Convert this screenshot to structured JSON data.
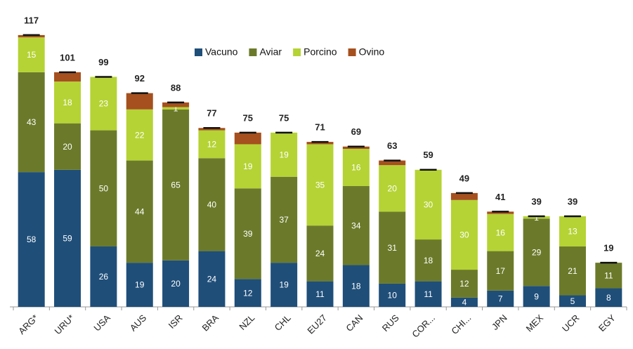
{
  "chart_data": {
    "type": "stacked_bar",
    "categories": [
      "ARG*",
      "URU*",
      "USA",
      "AUS",
      "ISR",
      "BRA",
      "NZL",
      "CHL",
      "EU27",
      "CAN",
      "RUS",
      "COR...",
      "CHI...",
      "JPN",
      "MEX",
      "UCR",
      "EGY"
    ],
    "series": [
      {
        "name": "Vacuno",
        "color": "#1f4e79",
        "values": [
          58,
          59,
          26,
          19,
          20,
          24,
          12,
          19,
          11,
          18,
          10,
          11,
          4,
          7,
          9,
          5,
          8
        ]
      },
      {
        "name": "Aviar",
        "color": "#6b7a2a",
        "values": [
          43,
          20,
          50,
          44,
          65,
          40,
          39,
          37,
          24,
          34,
          31,
          18,
          12,
          17,
          29,
          21,
          11
        ]
      },
      {
        "name": "Porcino",
        "color": "#b5d334",
        "values": [
          15,
          18,
          23,
          22,
          1,
          12,
          19,
          19,
          35,
          16,
          20,
          30,
          30,
          16,
          1,
          13,
          0
        ]
      },
      {
        "name": "Ovino",
        "color": "#a5501e",
        "values": [
          1,
          4,
          0,
          7,
          2,
          1,
          5,
          0,
          1,
          1,
          2,
          0,
          3,
          1,
          0,
          0,
          0
        ]
      }
    ],
    "totals": [
      117,
      101,
      99,
      92,
      88,
      77,
      75,
      75,
      71,
      69,
      63,
      59,
      49,
      41,
      39,
      39,
      19
    ],
    "ylim": [
      0,
      120
    ]
  }
}
